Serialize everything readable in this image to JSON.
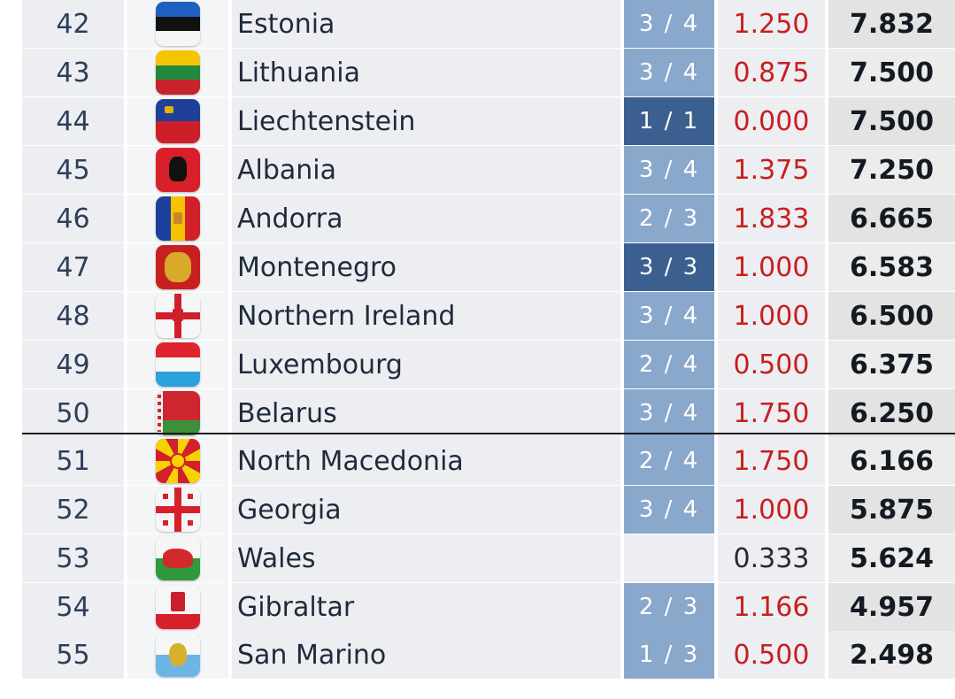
{
  "colors": {
    "row_bg": "#eceef2",
    "flag_bg": "#f4f5f7",
    "ratio_light": "#8aa7cc",
    "ratio_dark": "#3b5f8f",
    "coef_red": "#c81e1e",
    "coef_black": "#2a2a2a",
    "total_bg": "#e3e3e3",
    "total_bg_alt": "#ececec"
  },
  "rows": [
    {
      "rank": "42",
      "country": "Estonia",
      "flag_icon": "estonia-flag-icon",
      "ratio": "3/4",
      "ratio_style": "light",
      "coef": "1.250",
      "coef_color": "red",
      "total": "7.832"
    },
    {
      "rank": "43",
      "country": "Lithuania",
      "flag_icon": "lithuania-flag-icon",
      "ratio": "3/4",
      "ratio_style": "light",
      "coef": "0.875",
      "coef_color": "red",
      "total": "7.500"
    },
    {
      "rank": "44",
      "country": "Liechtenstein",
      "flag_icon": "liechtenstein-flag-icon",
      "ratio": "1/1",
      "ratio_style": "dark",
      "coef": "0.000",
      "coef_color": "red",
      "total": "7.500"
    },
    {
      "rank": "45",
      "country": "Albania",
      "flag_icon": "albania-flag-icon",
      "ratio": "3/4",
      "ratio_style": "light",
      "coef": "1.375",
      "coef_color": "red",
      "total": "7.250"
    },
    {
      "rank": "46",
      "country": "Andorra",
      "flag_icon": "andorra-flag-icon",
      "ratio": "2/3",
      "ratio_style": "light",
      "coef": "1.833",
      "coef_color": "red",
      "total": "6.665"
    },
    {
      "rank": "47",
      "country": "Montenegro",
      "flag_icon": "montenegro-flag-icon",
      "ratio": "3/3",
      "ratio_style": "dark",
      "coef": "1.000",
      "coef_color": "red",
      "total": "6.583"
    },
    {
      "rank": "48",
      "country": "Northern Ireland",
      "flag_icon": "northern-ireland-flag-icon",
      "ratio": "3/4",
      "ratio_style": "light",
      "coef": "1.000",
      "coef_color": "red",
      "total": "6.500"
    },
    {
      "rank": "49",
      "country": "Luxembourg",
      "flag_icon": "luxembourg-flag-icon",
      "ratio": "2/4",
      "ratio_style": "light",
      "coef": "0.500",
      "coef_color": "red",
      "total": "6.375"
    },
    {
      "rank": "50",
      "country": "Belarus",
      "flag_icon": "belarus-flag-icon",
      "ratio": "3/4",
      "ratio_style": "light",
      "coef": "1.750",
      "coef_color": "red",
      "total": "6.250"
    },
    {
      "rank": "51",
      "country": "North Macedonia",
      "flag_icon": "north-macedonia-flag-icon",
      "ratio": "2/4",
      "ratio_style": "light",
      "coef": "1.750",
      "coef_color": "red",
      "total": "6.166"
    },
    {
      "rank": "52",
      "country": "Georgia",
      "flag_icon": "georgia-flag-icon",
      "ratio": "3/4",
      "ratio_style": "light",
      "coef": "1.000",
      "coef_color": "red",
      "total": "5.875"
    },
    {
      "rank": "53",
      "country": "Wales",
      "flag_icon": "wales-flag-icon",
      "ratio": "",
      "ratio_style": "none",
      "coef": "0.333",
      "coef_color": "black",
      "total": "5.624"
    },
    {
      "rank": "54",
      "country": "Gibraltar",
      "flag_icon": "gibraltar-flag-icon",
      "ratio": "2/3",
      "ratio_style": "light",
      "coef": "1.166",
      "coef_color": "red",
      "total": "4.957"
    },
    {
      "rank": "55",
      "country": "San Marino",
      "flag_icon": "san-marino-flag-icon",
      "ratio": "1/3",
      "ratio_style": "light",
      "coef": "0.500",
      "coef_color": "red",
      "total": "2.498"
    }
  ]
}
